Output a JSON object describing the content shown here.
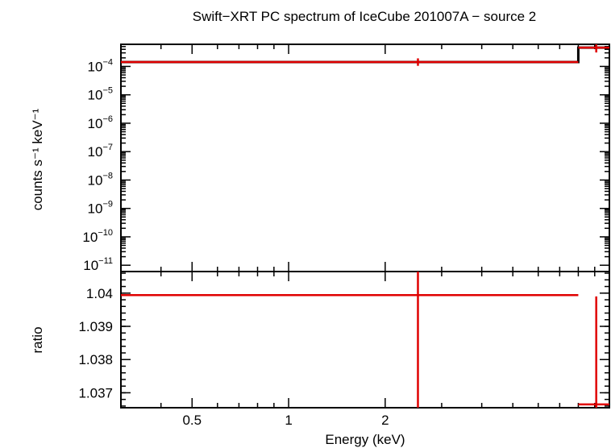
{
  "chart_data": [
    {
      "type": "line",
      "panel": "spectrum",
      "title": "Swift−XRT PC spectrum of IceCube 201007A − source 2",
      "xlabel": "",
      "ylabel": "counts s⁻¹ keV⁻¹",
      "xscale": "log",
      "yscale": "log",
      "xlim": [
        0.3,
        10
      ],
      "ylim": [
        6e-12,
        0.0006
      ],
      "y_ticks": [
        {
          "value": 0.0001,
          "mantissa": "10",
          "exp": "−4"
        },
        {
          "value": 1e-05,
          "mantissa": "10",
          "exp": "−5"
        },
        {
          "value": 1e-06,
          "mantissa": "10",
          "exp": "−6"
        },
        {
          "value": 1e-07,
          "mantissa": "10",
          "exp": "−7"
        },
        {
          "value": 1e-08,
          "mantissa": "10",
          "exp": "−8"
        },
        {
          "value": 1e-09,
          "mantissa": "10",
          "exp": "−9"
        },
        {
          "value": 1e-10,
          "mantissa": "10",
          "exp": "−10"
        },
        {
          "value": 1e-11,
          "mantissa": "10",
          "exp": "−11"
        }
      ],
      "series": [
        {
          "role": "data",
          "color": "#e00000",
          "points": [
            {
              "x": 2.53,
              "xlo": 0.3,
              "xhi": 8.0,
              "y": 0.000142,
              "ylo": 0.000105,
              "yhi": 0.000192
            },
            {
              "x": 9.1,
              "xlo": 8.0,
              "xhi": 10.0,
              "y": 0.00046,
              "ylo": 0.00031,
              "yhi": 0.00065
            }
          ]
        },
        {
          "role": "model",
          "color": "#000000",
          "steps": [
            {
              "xlo": 0.3,
              "xhi": 8.0,
              "y": 0.000142
            },
            {
              "xlo": 8.0,
              "xhi": 10.0,
              "y": 0.00046
            }
          ]
        }
      ]
    },
    {
      "type": "line",
      "panel": "ratio",
      "xlabel": "Energy (keV)",
      "ylabel": "ratio",
      "xscale": "log",
      "xlim": [
        0.3,
        10
      ],
      "ylim": [
        1.03655,
        1.04065
      ],
      "x_ticks": [
        {
          "value": 0.5,
          "label": "0.5"
        },
        {
          "value": 1,
          "label": "1"
        },
        {
          "value": 2,
          "label": "2"
        }
      ],
      "y_ticks": [
        {
          "value": 1.037,
          "label": "1.037"
        },
        {
          "value": 1.038,
          "label": "1.038"
        },
        {
          "value": 1.039,
          "label": "1.039"
        },
        {
          "value": 1.04,
          "label": "1.04"
        }
      ],
      "series": [
        {
          "role": "data",
          "color": "#e00000",
          "points": [
            {
              "x": 2.53,
              "xlo": 0.3,
              "xhi": 8.0,
              "y": 1.03994,
              "ylo": 1.0363,
              "yhi": 1.0409
            },
            {
              "x": 9.1,
              "xlo": 8.0,
              "xhi": 10.0,
              "y": 1.03665,
              "ylo": 1.0363,
              "yhi": 1.0399
            }
          ]
        }
      ]
    }
  ]
}
